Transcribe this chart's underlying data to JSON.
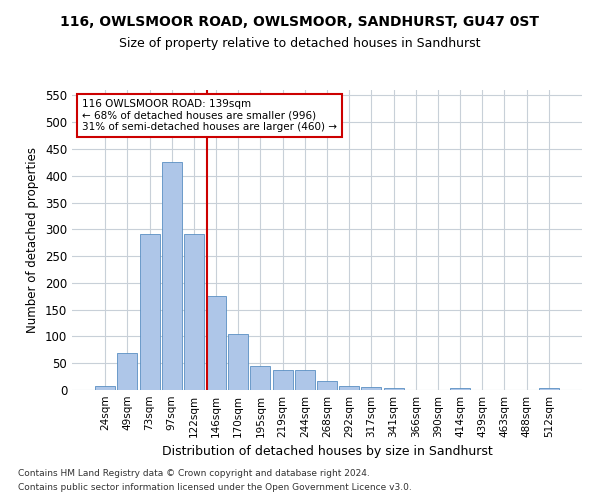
{
  "title": "116, OWLSMOOR ROAD, OWLSMOOR, SANDHURST, GU47 0ST",
  "subtitle": "Size of property relative to detached houses in Sandhurst",
  "xlabel": "Distribution of detached houses by size in Sandhurst",
  "ylabel": "Number of detached properties",
  "bar_color": "#aec6e8",
  "bar_edge_color": "#5a8fc2",
  "categories": [
    "24sqm",
    "49sqm",
    "73sqm",
    "97sqm",
    "122sqm",
    "146sqm",
    "170sqm",
    "195sqm",
    "219sqm",
    "244sqm",
    "268sqm",
    "292sqm",
    "317sqm",
    "341sqm",
    "366sqm",
    "390sqm",
    "414sqm",
    "439sqm",
    "463sqm",
    "488sqm",
    "512sqm"
  ],
  "values": [
    8,
    70,
    291,
    425,
    291,
    175,
    105,
    44,
    38,
    38,
    16,
    8,
    5,
    3,
    0,
    0,
    3,
    0,
    0,
    0,
    3
  ],
  "vline_x": 4.6,
  "vline_color": "#cc0000",
  "ylim": [
    0,
    560
  ],
  "yticks": [
    0,
    50,
    100,
    150,
    200,
    250,
    300,
    350,
    400,
    450,
    500,
    550
  ],
  "annotation_text": "116 OWLSMOOR ROAD: 139sqm\n← 68% of detached houses are smaller (996)\n31% of semi-detached houses are larger (460) →",
  "annotation_box_color": "#ffffff",
  "annotation_box_edge": "#cc0000",
  "footer1": "Contains HM Land Registry data © Crown copyright and database right 2024.",
  "footer2": "Contains public sector information licensed under the Open Government Licence v3.0.",
  "bg_color": "#ffffff",
  "grid_color": "#c8d0d8",
  "title_fontsize": 10,
  "subtitle_fontsize": 9
}
